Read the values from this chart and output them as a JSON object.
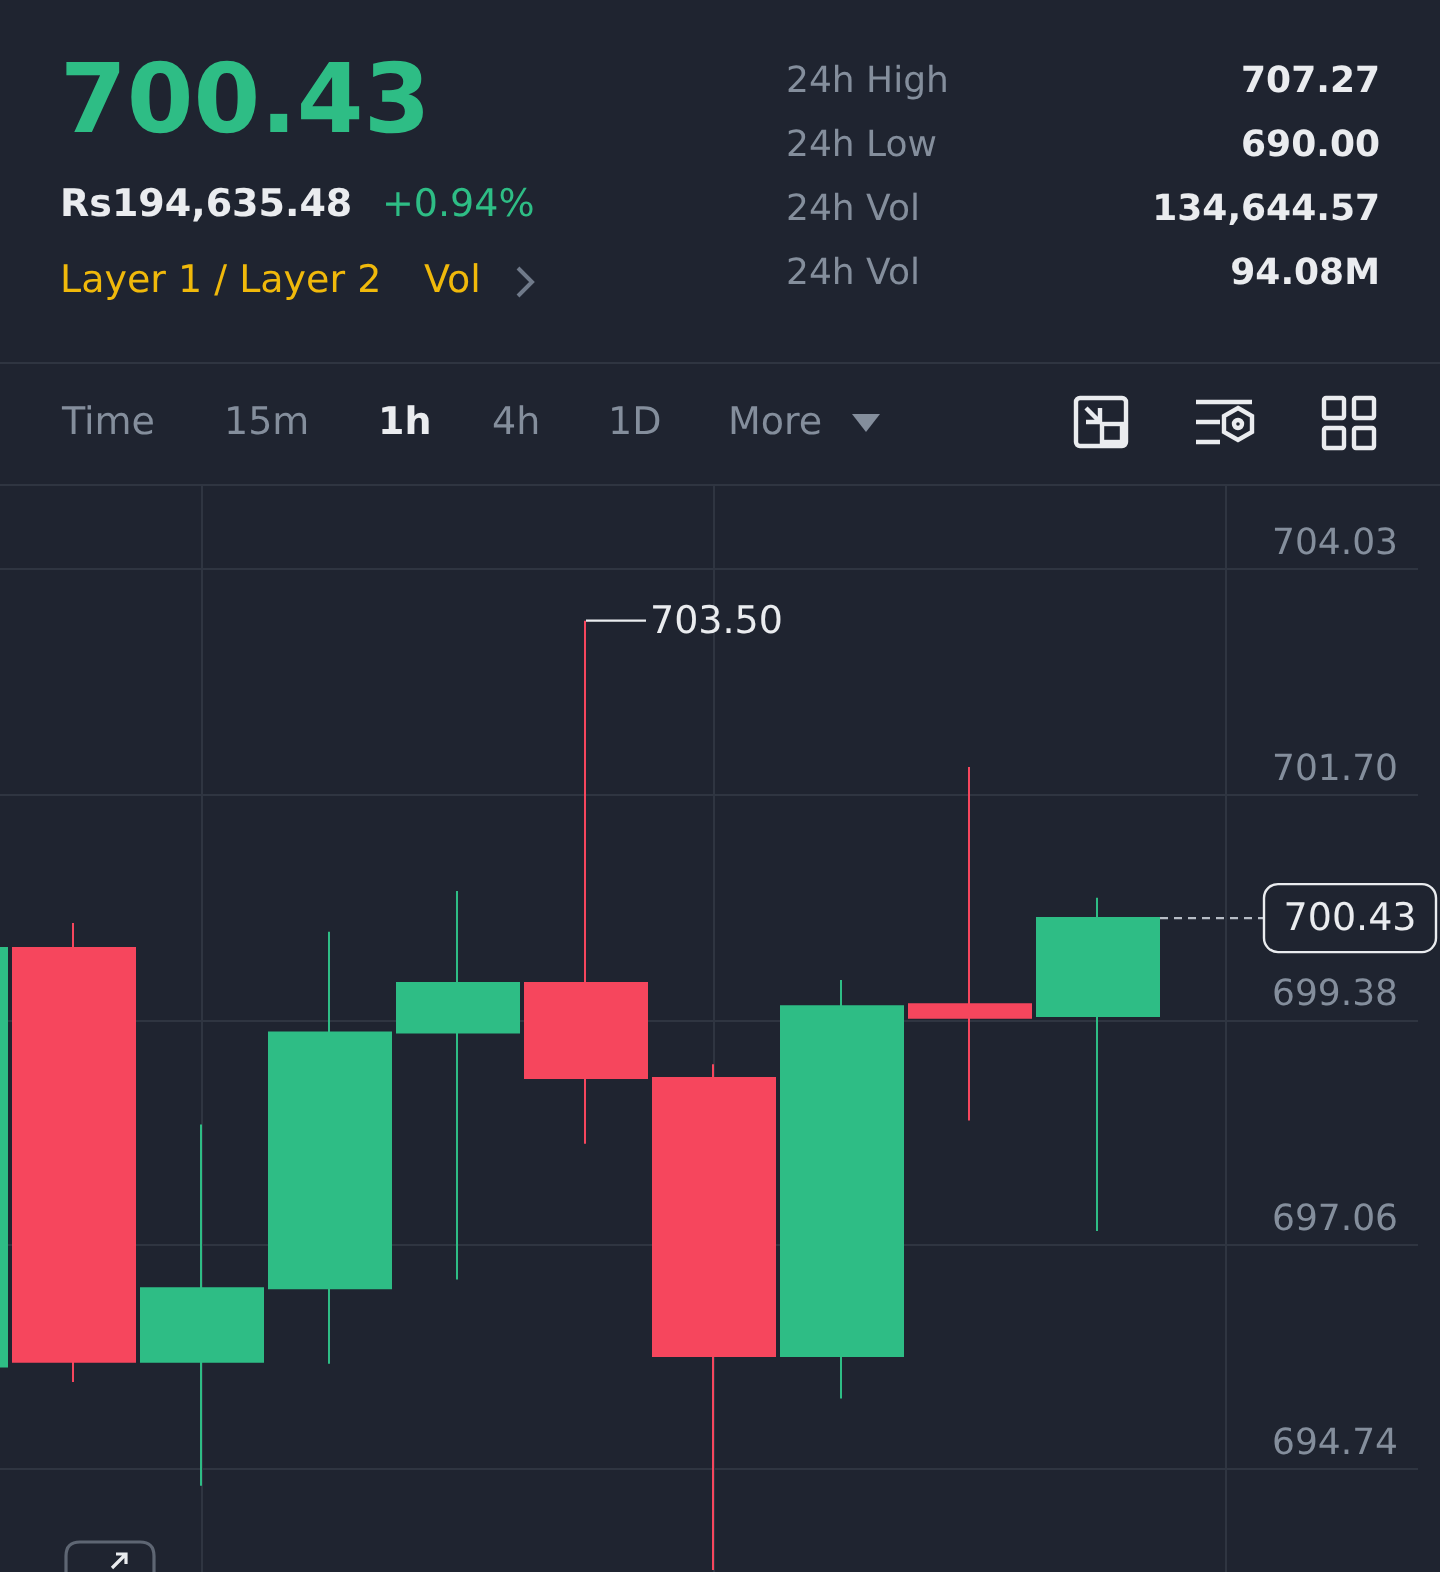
{
  "chart_data": {
    "type": "candlestick",
    "title": "700.43",
    "categories": [
      null,
      null,
      null,
      null,
      null,
      null,
      null,
      null,
      null,
      null,
      null,
      null
    ],
    "ohlc": [
      [
        695.8,
        700.12,
        695.33,
        700.12
      ],
      [
        700.12,
        700.38,
        695.64,
        695.85
      ],
      [
        695.85,
        698.3,
        694.57,
        696.61
      ],
      [
        696.61,
        700.29,
        695.83,
        699.25
      ],
      [
        699.25,
        700.71,
        696.7,
        699.76
      ],
      [
        699.76,
        703.5,
        698.1,
        698.78
      ],
      [
        698.78,
        698.92,
        693.7,
        695.91
      ],
      [
        695.91,
        699.79,
        695.47,
        699.52
      ],
      [
        699.54,
        701.99,
        698.34,
        699.4
      ],
      [
        699.42,
        700.64,
        697.2,
        700.43
      ],
      null,
      null
    ],
    "colors": [
      "#2ebd85",
      "#f6465d",
      "#2ebd85",
      "#2ebd85",
      "#2ebd85",
      "#f6465d",
      "#f6465d",
      "#2ebd85",
      "#f6465d",
      "#2ebd85",
      null,
      null
    ],
    "ylim": [
      693.68,
      704.89
    ],
    "yticks": [
      694.74,
      697.06,
      699.38,
      {
        "value": 701.7,
        "label": "701.70"
      },
      704.03
    ],
    "grid": true,
    "ref_lines": [
      {
        "axis": "y",
        "value": 700.43,
        "label": "700.43",
        "line_style": "dashed",
        "color": "#b7bdc6"
      }
    ],
    "annotations": [
      "Rs194,635.48",
      "+0.94%",
      "Layer 1 / Layer 2",
      "Vol",
      "24h High",
      "707.27",
      "24h Low",
      "690.00",
      "24h Vol",
      "134,644.57",
      "24h Vol",
      "94.08M",
      "Time",
      "15m",
      "1h",
      "4h",
      "1D",
      "More",
      "703.50"
    ]
  }
}
